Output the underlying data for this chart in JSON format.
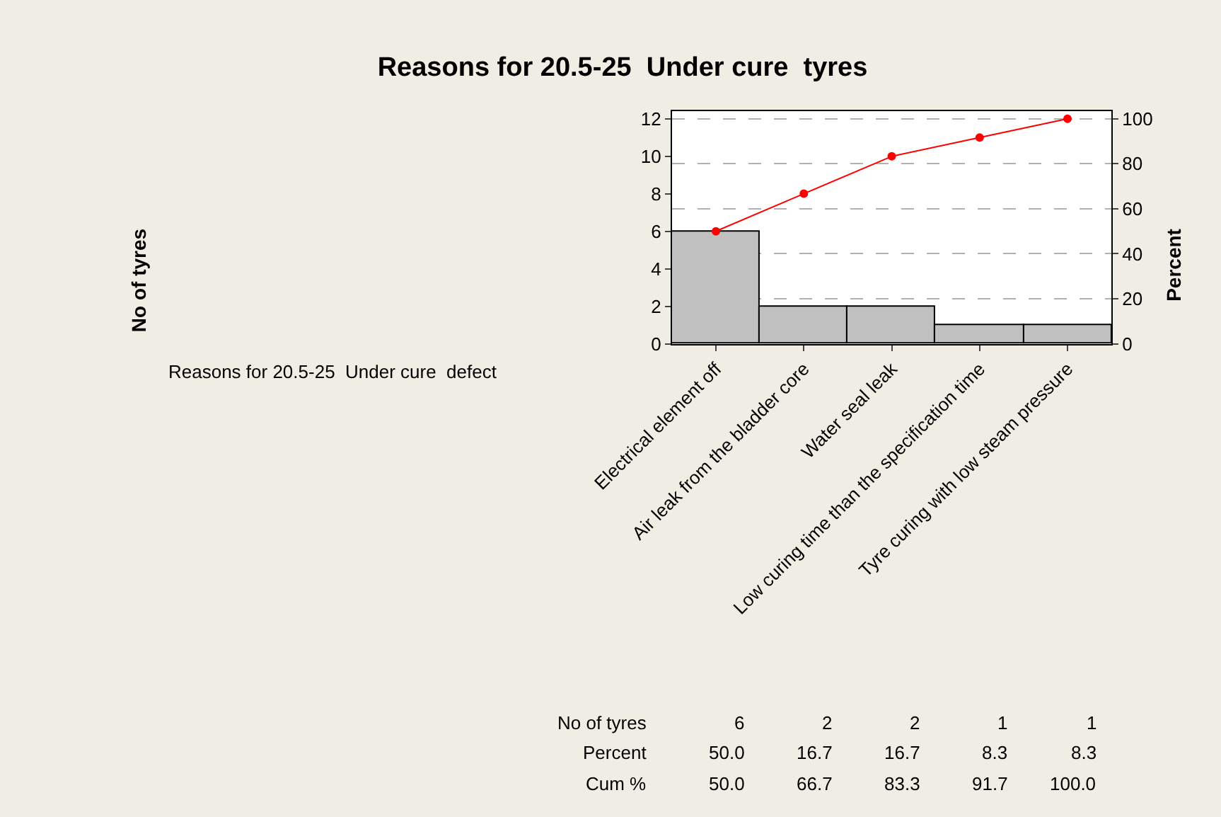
{
  "chart_data": {
    "type": "bar",
    "title": "Reasons for 20.5-25  Under cure  tyres",
    "y2label": "Percent",
    "annotations": [
      "Reasons for 20.5-25  Under cure  defect",
      "No of tyres",
      "No of tyres",
      "Percent",
      "Cum %",
      "50.0",
      "16.7",
      "16.7",
      "8.3",
      "8.3"
    ],
    "categories": [
      "Electrical element off",
      "Air leak from the bladder core",
      "Water seal leak",
      "Low curing time than the specification time",
      "Tyre curing with low steam pressure"
    ],
    "series": [
      {
        "color": "#c0c0c0",
        "values": [
          6,
          2,
          2,
          1,
          1
        ],
        "value_labels": [
          "6",
          "2",
          "2",
          "1",
          "1"
        ]
      },
      {
        "type": "line",
        "axis": "y2",
        "color": "#ff0000",
        "marker": "circle",
        "values": [
          50.0,
          66.7,
          83.3,
          91.7,
          100.0
        ],
        "value_labels": [
          "50.0",
          "66.7",
          "83.3",
          "91.7",
          "100.0"
        ]
      }
    ],
    "ylim": [
      0,
      12.4
    ],
    "yticks": [
      0,
      2,
      4,
      6,
      8,
      10,
      12
    ],
    "y2lim": [
      0,
      103.3
    ],
    "y2ticks": [
      0,
      20,
      40,
      60,
      80,
      100
    ],
    "grid": true,
    "legend": false,
    "data_labels": true
  }
}
